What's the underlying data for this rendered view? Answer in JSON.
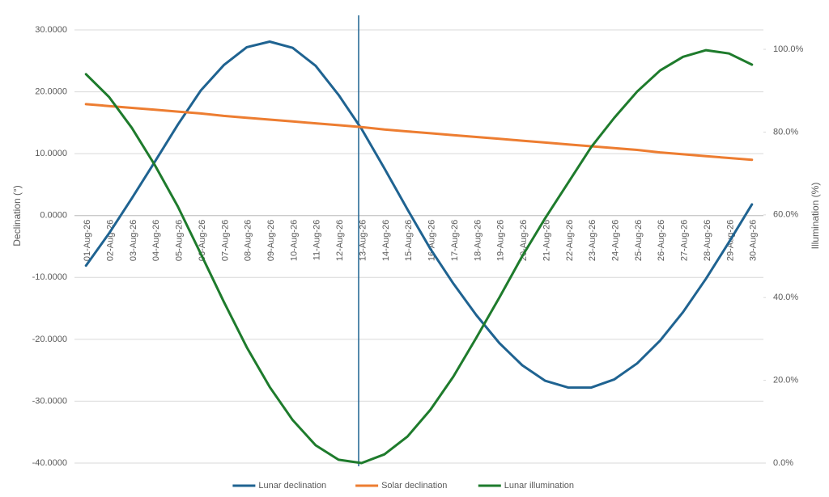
{
  "chart_data": {
    "type": "line",
    "categories": [
      "01-Aug-26",
      "02-Aug-26",
      "03-Aug-26",
      "04-Aug-26",
      "05-Aug-26",
      "06-Aug-26",
      "07-Aug-26",
      "08-Aug-26",
      "09-Aug-26",
      "10-Aug-26",
      "11-Aug-26",
      "12-Aug-26",
      "13-Aug-26",
      "14-Aug-26",
      "15-Aug-26",
      "16-Aug-26",
      "17-Aug-26",
      "18-Aug-26",
      "19-Aug-26",
      "20-Aug-26",
      "21-Aug-26",
      "22-Aug-26",
      "23-Aug-26",
      "24-Aug-26",
      "25-Aug-26",
      "26-Aug-26",
      "27-Aug-26",
      "28-Aug-26",
      "29-Aug-26",
      "30-Aug-26"
    ],
    "y_label": "Declination (°)",
    "y2_label": "Illumination (%)",
    "ylim": [
      -40,
      30
    ],
    "yticks": [
      {
        "value": -40,
        "label": "-40.0000"
      },
      {
        "value": -30,
        "label": "-30.0000"
      },
      {
        "value": -20,
        "label": "-20.0000"
      },
      {
        "value": -10,
        "label": "-10.0000"
      },
      {
        "value": 0,
        "label": "0.0000"
      },
      {
        "value": 10,
        "label": "10.0000"
      },
      {
        "value": 20,
        "label": "20.0000"
      },
      {
        "value": 30,
        "label": "30.0000"
      }
    ],
    "y2lim": [
      0,
      104.7
    ],
    "y2ticks": [
      {
        "value": 0,
        "label": "0.0%"
      },
      {
        "value": 20,
        "label": "20.0%"
      },
      {
        "value": 40,
        "label": "40.0%"
      },
      {
        "value": 60,
        "label": "60.0%"
      },
      {
        "value": 80,
        "label": "80.0%"
      },
      {
        "value": 100,
        "label": "100.0%"
      }
    ],
    "grid": true,
    "legend": "bottom",
    "series": [
      {
        "name": "Lunar declination",
        "color": "#1f6391",
        "values": [
          -8.1,
          -2.9,
          2.8,
          8.7,
          14.7,
          20.2,
          24.3,
          27.2,
          28.1,
          27.1,
          24.2,
          19.5,
          14,
          7.6,
          1,
          -5.4,
          -11,
          -16.1,
          -20.6,
          -24.2,
          -26.7,
          -27.8,
          -27.8,
          -26.5,
          -23.9,
          -20.2,
          -15.6,
          -10.2,
          -4.3,
          1.8
        ]
      },
      {
        "name": "Solar declination",
        "color": "#ed7d31",
        "values": [
          18,
          17.7,
          17.4,
          17.1,
          16.8,
          16.5,
          16.1,
          15.8,
          15.5,
          15.2,
          14.9,
          14.6,
          14.3,
          13.9,
          13.6,
          13.3,
          13,
          12.7,
          12.4,
          12.1,
          11.8,
          11.5,
          11.2,
          10.9,
          10.6,
          10.2,
          9.9,
          9.6,
          9.3,
          9
        ]
      },
      {
        "name": "Lunar illumination",
        "color": "#1e7b2c",
        "axis": "y2",
        "values": [
          94,
          88.5,
          81,
          72,
          62,
          50.6,
          39,
          28,
          18.4,
          10.4,
          4.3,
          0.8,
          0,
          2.1,
          6.4,
          12.9,
          20.9,
          30.3,
          40,
          50,
          59.2,
          67.8,
          76.4,
          83.4,
          89.8,
          94.9,
          98.2,
          99.8,
          99,
          96.3
        ]
      }
    ]
  }
}
